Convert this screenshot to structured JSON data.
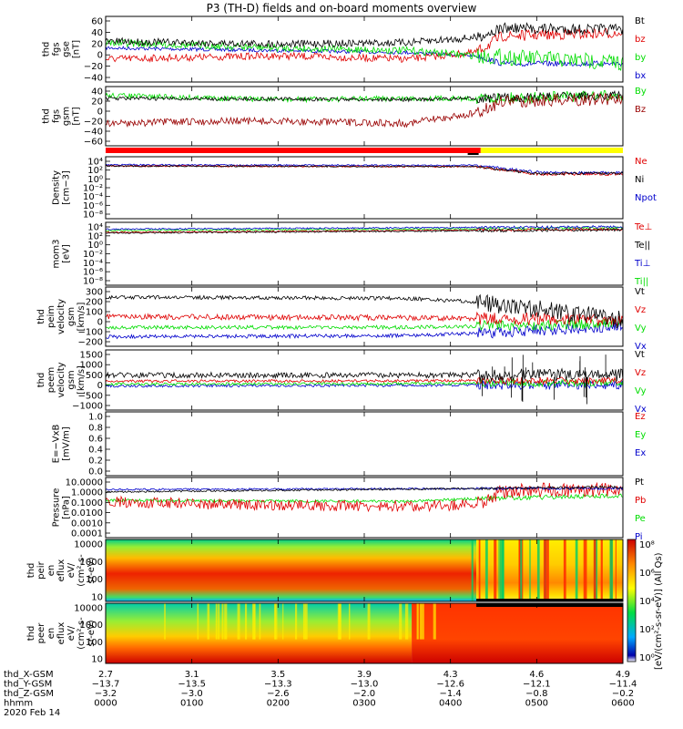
{
  "title": "P3 (TH-D) fields and on-board moments overview",
  "colors": {
    "black": "#000000",
    "red": "#e00000",
    "green": "#00dd00",
    "blue": "#0000cc",
    "darkred": "#990000",
    "yellow": "#ffff00",
    "ecred": "#ff0000"
  },
  "panels": [
    {
      "key": "fgs_gse",
      "ylabel": [
        "thd",
        "fgs",
        "gse",
        "[nT]"
      ],
      "ticks": [
        "60",
        "40",
        "20",
        "0",
        "−20",
        "−40"
      ],
      "legend": [
        {
          "t": "Bt",
          "c": "black"
        },
        {
          "t": "bz",
          "c": "red"
        },
        {
          "t": "by",
          "c": "green"
        },
        {
          "t": "bx",
          "c": "blue"
        }
      ]
    },
    {
      "key": "fgs_gsm",
      "ylabel": [
        "thd",
        "fgs",
        "gsm",
        "[nT]"
      ],
      "ticks": [
        "40",
        "20",
        "0",
        "−20",
        "−40",
        "−60"
      ],
      "legend": [
        {
          "t": "By",
          "c": "green"
        },
        {
          "t": "Bz",
          "c": "darkred"
        }
      ]
    },
    {
      "key": "density",
      "ylabel": [
        "Density",
        "[cm−3]"
      ],
      "ticks": [
        "10⁴",
        "10²",
        "10⁰",
        "10⁻²",
        "10⁻⁴",
        "10⁻⁶",
        "10⁻⁸"
      ],
      "legend": [
        {
          "t": "Ne",
          "c": "red"
        },
        {
          "t": "Ni",
          "c": "black"
        },
        {
          "t": "Npot",
          "c": "blue"
        }
      ]
    },
    {
      "key": "temp",
      "ylabel": [
        "mom3",
        "[eV]"
      ],
      "ticks": [
        "10⁴",
        "10²",
        "10⁰",
        "10⁻²",
        "10⁻⁴",
        "10⁻⁶",
        "10⁻⁸"
      ],
      "legend": [
        {
          "t": "Te⊥",
          "c": "red"
        },
        {
          "t": "Te||",
          "c": "black"
        },
        {
          "t": "Ti⊥",
          "c": "blue"
        },
        {
          "t": "Ti||",
          "c": "green"
        }
      ]
    },
    {
      "key": "vi",
      "ylabel": [
        "thd",
        "peim",
        "velocity",
        "gsm",
        "[km/s]"
      ],
      "ticks": [
        "300",
        "200",
        "100",
        "0",
        "−100",
        "−200"
      ],
      "legend": [
        {
          "t": "Vt",
          "c": "black"
        },
        {
          "t": "Vz",
          "c": "red"
        },
        {
          "t": "Vy",
          "c": "green"
        },
        {
          "t": "Vx",
          "c": "blue"
        }
      ]
    },
    {
      "key": "ve",
      "ylabel": [
        "thd",
        "peem",
        "velocity",
        "gsm",
        "[km/s]"
      ],
      "ticks": [
        "1500",
        "1000",
        "500",
        "0",
        "−500",
        "−1000"
      ],
      "legend": [
        {
          "t": "Vt",
          "c": "black"
        },
        {
          "t": "Vz",
          "c": "red"
        },
        {
          "t": "Vy",
          "c": "green"
        },
        {
          "t": "Vx",
          "c": "blue"
        }
      ]
    },
    {
      "key": "ef",
      "ylabel": [
        "E=−VxB",
        "[mV/m]"
      ],
      "ticks": [
        "1.0",
        "0.8",
        "0.6",
        "0.4",
        "0.2",
        "0.0"
      ],
      "legend": [
        {
          "t": "Ez",
          "c": "red"
        },
        {
          "t": "Ey",
          "c": "green"
        },
        {
          "t": "Ex",
          "c": "blue"
        }
      ]
    },
    {
      "key": "pressure",
      "ylabel": [
        "Pressure",
        "[nPa]"
      ],
      "ticks": [
        "10.0000",
        "1.0000",
        "0.1000",
        "0.0100",
        "0.0010",
        "0.0001"
      ],
      "legend": [
        {
          "t": "Pt",
          "c": "black"
        },
        {
          "t": "Pb",
          "c": "red"
        },
        {
          "t": "Pe",
          "c": "green"
        },
        {
          "t": "Pi",
          "c": "blue"
        }
      ]
    },
    {
      "key": "peir",
      "ylabel": [
        "thd",
        "peir",
        "en",
        "eflux",
        "eV/",
        "(cm²-s-",
        "sr-eV)"
      ],
      "ticks": [
        "10000",
        "1000",
        "100",
        "10"
      ],
      "legend": []
    },
    {
      "key": "peer",
      "ylabel": [
        "thd",
        "peer",
        "en",
        "eflux",
        "eV/",
        "(cm²-s-",
        "sr-eV)"
      ],
      "ticks": [
        "10000",
        "1000",
        "100",
        "10"
      ],
      "legend": []
    }
  ],
  "colorbar": {
    "ticks": [
      "10⁸",
      "10⁶",
      "10⁴",
      "10²",
      "10⁰"
    ],
    "label": "[eV/(cm²-s-sr-eV)] (All Qs)"
  },
  "footer": {
    "labels": [
      "thd_X-GSM",
      "thd_Y-GSM",
      "thd_Z-GSM",
      "hhmm",
      "2020 Feb 14"
    ],
    "ticks": [
      {
        "x": "2.7",
        "y": "−13.7",
        "z": "−3.2",
        "t": "0000"
      },
      {
        "x": "3.1",
        "y": "−13.5",
        "z": "−3.0",
        "t": "0100"
      },
      {
        "x": "3.5",
        "y": "−13.3",
        "z": "−2.6",
        "t": "0200"
      },
      {
        "x": "3.9",
        "y": "−13.0",
        "z": "−2.0",
        "t": "0300"
      },
      {
        "x": "4.3",
        "y": "−12.6",
        "z": "−1.4",
        "t": "0400"
      },
      {
        "x": "4.6",
        "y": "−12.1",
        "z": "−0.8",
        "t": "0500"
      },
      {
        "x": "4.9",
        "y": "−11.4",
        "z": "−0.2",
        "t": "0600"
      }
    ]
  },
  "chart_data": {
    "type": "line",
    "title": "P3 (TH-D) fields and on-board moments overview",
    "x_range_hhmm": [
      "0000",
      "0600"
    ],
    "series": [
      {
        "panel": "fgs_gse",
        "name": "Bt",
        "approx": [
          {
            "t": 0,
            "v": 28
          },
          {
            "t": 3.5,
            "v": 25
          },
          {
            "t": 4.3,
            "v": 28
          },
          {
            "t": 6,
            "v": 35
          }
        ]
      },
      {
        "panel": "fgs_gse",
        "name": "bz",
        "approx": [
          {
            "t": 0,
            "v": -10
          },
          {
            "t": 3.5,
            "v": -8
          },
          {
            "t": 4.5,
            "v": 15
          },
          {
            "t": 6,
            "v": 30
          }
        ]
      },
      {
        "panel": "fgs_gse",
        "name": "by",
        "approx": [
          {
            "t": 0,
            "v": 15
          },
          {
            "t": 3.5,
            "v": 5
          },
          {
            "t": 4.5,
            "v": -8
          },
          {
            "t": 6,
            "v": -10
          }
        ]
      },
      {
        "panel": "fgs_gse",
        "name": "bx",
        "approx": [
          {
            "t": 0,
            "v": 5
          },
          {
            "t": 3.5,
            "v": 0
          },
          {
            "t": 4.5,
            "v": -12
          },
          {
            "t": 6,
            "v": -12
          }
        ]
      },
      {
        "panel": "fgs_gsm",
        "name": "By",
        "approx": [
          {
            "t": 0,
            "v": 15
          },
          {
            "t": 3.5,
            "v": 10
          },
          {
            "t": 6,
            "v": 15
          }
        ]
      },
      {
        "panel": "fgs_gsm",
        "name": "Bz",
        "approx": [
          {
            "t": 0,
            "v": -30
          },
          {
            "t": 3.5,
            "v": -30
          },
          {
            "t": 4.5,
            "v": 10
          },
          {
            "t": 6,
            "v": 15
          }
        ]
      },
      {
        "panel": "density",
        "name": "Ne",
        "approx": [
          {
            "t": 0,
            "v": 0.5
          },
          {
            "t": 4.3,
            "v": 0.4
          },
          {
            "t": 6,
            "v": 0.1
          }
        ]
      },
      {
        "panel": "vi",
        "name": "Vt",
        "approx": [
          {
            "t": 0,
            "v": 200
          },
          {
            "t": 3.5,
            "v": 190
          },
          {
            "t": 6,
            "v": 60
          }
        ]
      },
      {
        "panel": "vi",
        "name": "Vz",
        "approx": [
          {
            "t": 0,
            "v": -40
          },
          {
            "t": 6,
            "v": 0
          }
        ]
      },
      {
        "panel": "vi",
        "name": "Vy",
        "approx": [
          {
            "t": 0,
            "v": -100
          },
          {
            "t": 6,
            "v": -50
          }
        ]
      },
      {
        "panel": "vi",
        "name": "Vx",
        "approx": [
          {
            "t": 0,
            "v": -160
          },
          {
            "t": 6,
            "v": -70
          }
        ]
      },
      {
        "panel": "ve",
        "name": "Vt",
        "approx": [
          {
            "t": 0,
            "v": 300
          },
          {
            "t": 6,
            "v": 300
          }
        ]
      },
      {
        "panel": "pressure",
        "name": "Pt",
        "approx": [
          {
            "t": 0,
            "v": 0.5
          },
          {
            "t": 6,
            "v": 0.6
          }
        ]
      },
      {
        "panel": "pressure",
        "name": "Pb",
        "approx": [
          {
            "t": 0,
            "v": 0.3
          },
          {
            "t": 3.5,
            "v": 0.1
          },
          {
            "t": 6,
            "v": 0.5
          }
        ]
      }
    ]
  }
}
